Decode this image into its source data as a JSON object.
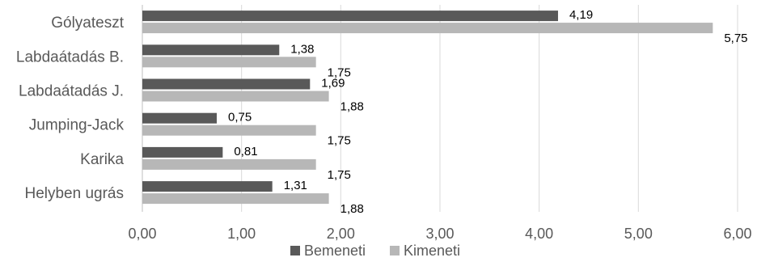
{
  "chart_data": {
    "type": "bar",
    "orientation": "horizontal",
    "title": "",
    "xlabel": "",
    "ylabel": "",
    "categories": [
      "Gólyateszt",
      "Labdaátadás B.",
      "Labdaátadás J.",
      "Jumping-Jack",
      "Karika",
      "Helyben ugrás"
    ],
    "series": [
      {
        "name": "Bemeneti",
        "color": "#595959",
        "values": [
          4.19,
          1.38,
          1.69,
          0.75,
          0.81,
          1.31
        ],
        "labels": [
          "4,19",
          "1,38",
          "1,69",
          "0,75",
          "0,81",
          "1,31"
        ]
      },
      {
        "name": "Kimeneti",
        "color": "#b7b7b7",
        "values": [
          5.75,
          1.75,
          1.88,
          1.75,
          1.75,
          1.88
        ],
        "labels": [
          "5,75",
          "1,75",
          "1,88",
          "1,75",
          "1,75",
          "1,88"
        ]
      }
    ],
    "xlim": [
      0,
      6
    ],
    "x_ticks": [
      0,
      1,
      2,
      3,
      4,
      5,
      6
    ],
    "x_tick_labels": [
      "0,00",
      "1,00",
      "2,00",
      "3,00",
      "4,00",
      "5,00",
      "6,00"
    ],
    "grid": true,
    "legend": "bottom"
  }
}
